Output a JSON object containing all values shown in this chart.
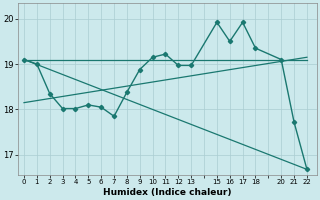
{
  "xlabel": "Humidex (Indice chaleur)",
  "bg_color": "#cce9ec",
  "grid_color": "#aacdd2",
  "line_color": "#1a7870",
  "xlim": [
    -0.5,
    22.8
  ],
  "ylim": [
    16.55,
    20.35
  ],
  "xticks": [
    0,
    1,
    2,
    3,
    4,
    5,
    6,
    7,
    8,
    9,
    10,
    11,
    12,
    13,
    15,
    16,
    17,
    18,
    20,
    21,
    22
  ],
  "yticks": [
    17,
    18,
    19,
    20
  ],
  "main_x": [
    0,
    1,
    2,
    3,
    4,
    5,
    6,
    7,
    8,
    9,
    10,
    11,
    12,
    13,
    15,
    16,
    17,
    18,
    20,
    21,
    22
  ],
  "main_y": [
    19.1,
    19.0,
    18.35,
    18.02,
    18.02,
    18.1,
    18.05,
    17.85,
    18.38,
    18.88,
    19.15,
    19.22,
    18.97,
    18.97,
    19.92,
    19.5,
    19.92,
    19.35,
    19.1,
    17.72,
    16.68
  ],
  "flat_line_x": [
    0,
    22
  ],
  "flat_line_y": [
    19.1,
    19.1
  ],
  "rising_line_x": [
    0,
    22
  ],
  "rising_line_y": [
    18.15,
    19.15
  ],
  "diag_line_x": [
    0,
    22
  ],
  "diag_line_y": [
    19.1,
    16.68
  ]
}
